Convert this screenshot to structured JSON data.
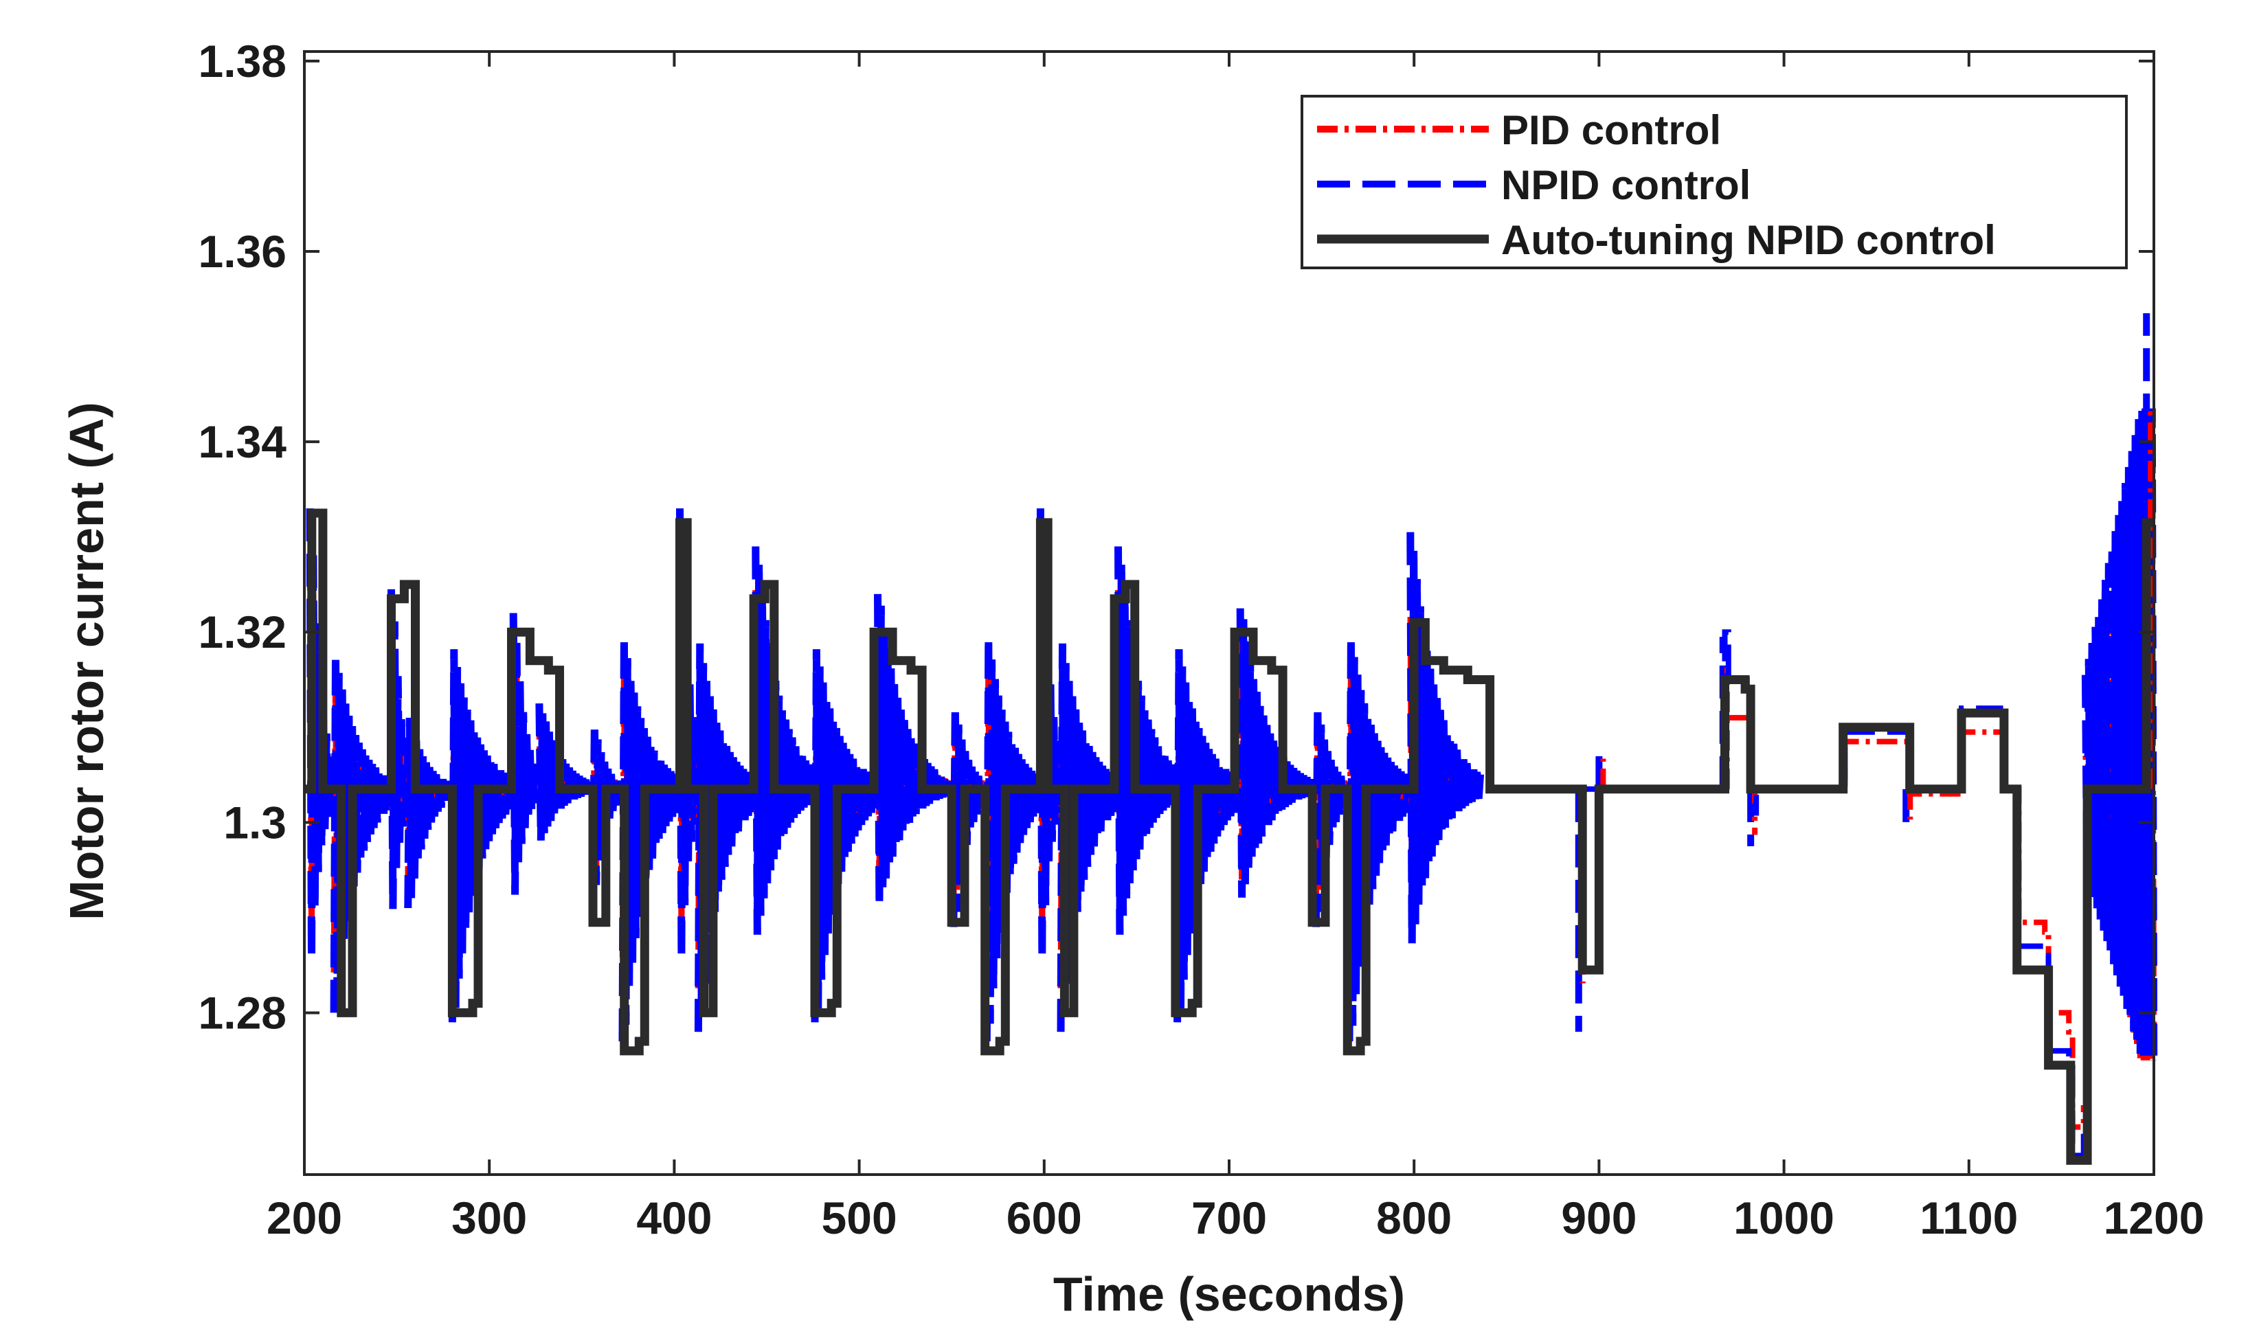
{
  "chart_data": {
    "type": "line",
    "title": "",
    "xlabel": "Time (seconds)",
    "ylabel": "Motor rotor current (A)",
    "xlim": [
      200,
      1200
    ],
    "ylim": [
      1.263,
      1.381
    ],
    "xticks": [
      200,
      300,
      400,
      500,
      600,
      700,
      800,
      900,
      1000,
      1100,
      1200
    ],
    "yticks": [
      1.28,
      1.3,
      1.32,
      1.34,
      1.36,
      1.38
    ],
    "xtick_labels": [
      "200",
      "300",
      "400",
      "500",
      "600",
      "700",
      "800",
      "900",
      "1000",
      "1100",
      "1200"
    ],
    "ytick_labels": [
      "1.28",
      "1.3",
      "1.32",
      "1.34",
      "1.36",
      "1.38"
    ],
    "legend_position": "top-right",
    "baseline": 1.3035,
    "series": [
      {
        "name": "PID control",
        "color": "#ff0000",
        "style": "dash-dot"
      },
      {
        "name": "NPID control",
        "color": "#0000ff",
        "style": "dashed"
      },
      {
        "name": "Auto-tuning NPID control",
        "color": "#2b2b2b",
        "style": "solid"
      }
    ],
    "events": [
      {
        "t": 203,
        "dir": 1,
        "amp": 0.0295
      },
      {
        "t": 216,
        "dir": -1,
        "amp": 0.0235
      },
      {
        "t": 247,
        "dir": 1,
        "amp": 0.021
      },
      {
        "t": 256,
        "dir": -1,
        "amp": 0.0125
      },
      {
        "t": 280,
        "dir": -1,
        "amp": 0.0245
      },
      {
        "t": 313,
        "dir": 1,
        "amp": 0.0185
      },
      {
        "t": 327,
        "dir": 1,
        "amp": 0.009
      },
      {
        "t": 356,
        "dir": -1,
        "amp": 0.0115
      },
      {
        "t": 372,
        "dir": -1,
        "amp": 0.0265
      },
      {
        "t": 403,
        "dir": 1,
        "amp": 0.0295
      },
      {
        "t": 413,
        "dir": -1,
        "amp": 0.0255
      },
      {
        "t": 444,
        "dir": 1,
        "amp": 0.0255
      },
      {
        "t": 476,
        "dir": -1,
        "amp": 0.0245
      },
      {
        "t": 510,
        "dir": 1,
        "amp": 0.0205
      },
      {
        "t": 551,
        "dir": -1,
        "amp": 0.0145
      },
      {
        "t": 569,
        "dir": -1,
        "amp": 0.0265
      },
      {
        "t": 598,
        "dir": 1,
        "amp": 0.0295
      },
      {
        "t": 609,
        "dir": -1,
        "amp": 0.0255
      },
      {
        "t": 640,
        "dir": 1,
        "amp": 0.0255
      },
      {
        "t": 672,
        "dir": -1,
        "amp": 0.0245
      },
      {
        "t": 706,
        "dir": 1,
        "amp": 0.019
      },
      {
        "t": 747,
        "dir": -1,
        "amp": 0.0145
      },
      {
        "t": 765,
        "dir": -1,
        "amp": 0.0265
      },
      {
        "t": 798,
        "dir": 1,
        "amp": 0.027
      }
    ],
    "auto_tuning_steps": [
      [
        200,
        1.3035
      ],
      [
        204,
        1.3325
      ],
      [
        210,
        1.3035
      ],
      [
        220,
        1.28
      ],
      [
        226,
        1.3035
      ],
      [
        247,
        1.3235
      ],
      [
        254,
        1.325
      ],
      [
        260,
        1.3035
      ],
      [
        278,
        1.3035
      ],
      [
        280,
        1.28
      ],
      [
        291,
        1.281
      ],
      [
        294,
        1.3035
      ],
      [
        311,
        1.3035
      ],
      [
        312,
        1.32
      ],
      [
        322,
        1.317
      ],
      [
        332,
        1.316
      ],
      [
        338,
        1.3035
      ],
      [
        354,
        1.3035
      ],
      [
        356,
        1.2895
      ],
      [
        363,
        1.3035
      ],
      [
        371,
        1.3035
      ],
      [
        373,
        1.276
      ],
      [
        381,
        1.277
      ],
      [
        384,
        1.3035
      ],
      [
        401,
        1.3035
      ],
      [
        403,
        1.3315
      ],
      [
        407,
        1.3035
      ],
      [
        416,
        1.28
      ],
      [
        421,
        1.3035
      ],
      [
        441,
        1.3035
      ],
      [
        443,
        1.3235
      ],
      [
        449,
        1.325
      ],
      [
        454,
        1.3035
      ],
      [
        474,
        1.3035
      ],
      [
        476,
        1.28
      ],
      [
        485,
        1.281
      ],
      [
        488,
        1.3035
      ],
      [
        507,
        1.3035
      ],
      [
        508,
        1.32
      ],
      [
        518,
        1.317
      ],
      [
        528,
        1.316
      ],
      [
        534,
        1.3035
      ],
      [
        548,
        1.3035
      ],
      [
        550,
        1.2895
      ],
      [
        557,
        1.3035
      ],
      [
        566,
        1.3035
      ],
      [
        568,
        1.276
      ],
      [
        576,
        1.277
      ],
      [
        579,
        1.3035
      ],
      [
        596,
        1.3035
      ],
      [
        598,
        1.3315
      ],
      [
        602,
        1.3035
      ],
      [
        611,
        1.28
      ],
      [
        616,
        1.3035
      ],
      [
        636,
        1.3035
      ],
      [
        638,
        1.3235
      ],
      [
        644,
        1.325
      ],
      [
        649,
        1.3035
      ],
      [
        669,
        1.3035
      ],
      [
        671,
        1.28
      ],
      [
        680,
        1.281
      ],
      [
        683,
        1.3035
      ],
      [
        702,
        1.3035
      ],
      [
        703,
        1.32
      ],
      [
        713,
        1.317
      ],
      [
        723,
        1.316
      ],
      [
        729,
        1.3035
      ],
      [
        743,
        1.3035
      ],
      [
        745,
        1.2895
      ],
      [
        752,
        1.3035
      ],
      [
        762,
        1.3035
      ],
      [
        764,
        1.276
      ],
      [
        771,
        1.277
      ],
      [
        774,
        1.3035
      ],
      [
        798,
        1.3035
      ],
      [
        800,
        1.321
      ],
      [
        806,
        1.317
      ],
      [
        816,
        1.316
      ],
      [
        829,
        1.315
      ],
      [
        841,
        1.3035
      ],
      [
        889,
        1.3035
      ],
      [
        891,
        1.2845
      ],
      [
        900,
        1.3035
      ],
      [
        967,
        1.3035
      ],
      [
        968,
        1.315
      ],
      [
        979,
        1.314
      ],
      [
        982,
        1.3035
      ],
      [
        1031,
        1.3035
      ],
      [
        1032,
        1.31
      ],
      [
        1066,
        1.31
      ],
      [
        1068,
        1.3035
      ],
      [
        1094,
        1.3035
      ],
      [
        1096,
        1.3115
      ],
      [
        1117,
        1.3115
      ],
      [
        1119,
        1.3035
      ],
      [
        1124,
        1.3035
      ],
      [
        1126,
        1.2845
      ],
      [
        1141,
        1.2845
      ],
      [
        1143,
        1.2745
      ],
      [
        1154,
        1.2745
      ],
      [
        1155,
        1.2645
      ],
      [
        1162,
        1.2645
      ],
      [
        1164,
        1.3035
      ],
      [
        1194,
        1.3035
      ],
      [
        1196,
        1.3315
      ],
      [
        1200,
        1.3315
      ]
    ],
    "pid_steps": [
      [
        841,
        1.3035
      ],
      [
        967,
        1.3035
      ],
      [
        969,
        1.311
      ],
      [
        980,
        1.3105
      ],
      [
        982,
        1.3035
      ],
      [
        1031,
        1.3035
      ],
      [
        1033,
        1.3085
      ],
      [
        1066,
        1.3085
      ],
      [
        1068,
        1.303
      ],
      [
        1094,
        1.3035
      ],
      [
        1096,
        1.3095
      ],
      [
        1117,
        1.3095
      ],
      [
        1119,
        1.3035
      ],
      [
        1124,
        1.3035
      ],
      [
        1127,
        1.2895
      ],
      [
        1141,
        1.2885
      ],
      [
        1143,
        1.28
      ],
      [
        1154,
        1.278
      ],
      [
        1156,
        1.268
      ],
      [
        1162,
        1.27
      ],
      [
        1164,
        1.3035
      ]
    ],
    "npid_steps": [
      [
        841,
        1.3035
      ],
      [
        966,
        1.3035
      ],
      [
        968,
        1.32
      ],
      [
        970,
        1.315
      ],
      [
        980,
        1.314
      ],
      [
        982,
        1.301
      ],
      [
        985,
        1.3035
      ],
      [
        1031,
        1.3035
      ],
      [
        1033,
        1.3095
      ],
      [
        1066,
        1.3095
      ],
      [
        1068,
        1.3035
      ],
      [
        1094,
        1.3035
      ],
      [
        1096,
        1.312
      ],
      [
        1117,
        1.311
      ],
      [
        1119,
        1.3035
      ],
      [
        1124,
        1.3035
      ],
      [
        1126,
        1.287
      ],
      [
        1141,
        1.286
      ],
      [
        1143,
        1.276
      ],
      [
        1154,
        1.275
      ],
      [
        1156,
        1.265
      ],
      [
        1162,
        1.267
      ],
      [
        1164,
        1.3035
      ]
    ],
    "blips": [
      {
        "t": 889,
        "dir": -1,
        "amp": 0.0255
      },
      {
        "t": 900,
        "dir": 1,
        "amp": 0.004
      },
      {
        "t": 967,
        "dir": 1,
        "amp": 0.016
      },
      {
        "t": 982,
        "dir": -1,
        "amp": 0.006
      },
      {
        "t": 1066,
        "dir": -1,
        "amp": 0.004
      },
      {
        "t": 1196,
        "dir": 1,
        "amp": 0.05
      }
    ]
  }
}
